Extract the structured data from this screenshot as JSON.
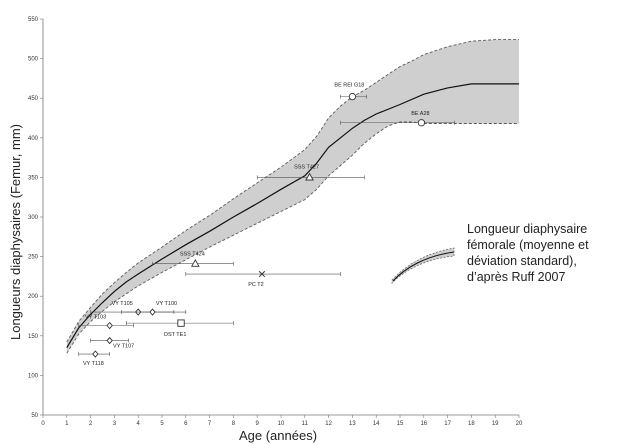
{
  "chart_data": {
    "type": "line",
    "xlabel": "Age (années)",
    "ylabel": "Longueurs diaphysaires (Femur, mm)",
    "xlim": [
      0,
      20
    ],
    "ylim": [
      50,
      550
    ],
    "x_ticks": [
      0,
      1,
      2,
      3,
      4,
      5,
      6,
      7,
      8,
      9,
      10,
      11,
      12,
      13,
      14,
      15,
      16,
      17,
      18,
      19,
      20
    ],
    "y_ticks": [
      50,
      100,
      150,
      200,
      250,
      300,
      350,
      400,
      450,
      500,
      550
    ],
    "grid": false,
    "mean_curve": {
      "x": [
        1,
        1.5,
        2,
        2.5,
        3,
        3.5,
        4,
        5,
        6,
        7,
        8,
        9,
        10,
        11,
        11.5,
        12,
        12.5,
        13,
        13.5,
        14,
        15,
        16,
        17,
        18,
        19,
        20
      ],
      "y": [
        135,
        160,
        177,
        192,
        206,
        218,
        228,
        247,
        265,
        282,
        300,
        317,
        335,
        352,
        368,
        388,
        400,
        412,
        422,
        430,
        442,
        455,
        463,
        468,
        468,
        468
      ]
    },
    "sd_band": {
      "x": [
        1,
        1.5,
        2,
        2.5,
        3,
        3.5,
        4,
        5,
        6,
        7,
        8,
        9,
        10,
        11,
        11.5,
        12,
        12.5,
        13,
        13.5,
        14,
        14.5,
        15,
        15.5,
        16,
        17,
        18,
        19,
        20
      ],
      "upper": [
        142,
        168,
        186,
        203,
        217,
        230,
        242,
        262,
        283,
        302,
        323,
        343,
        363,
        385,
        402,
        425,
        440,
        452,
        460,
        470,
        480,
        490,
        497,
        505,
        515,
        522,
        524,
        524
      ],
      "lower": [
        128,
        152,
        168,
        181,
        193,
        203,
        213,
        230,
        246,
        262,
        277,
        292,
        307,
        322,
        335,
        352,
        365,
        378,
        393,
        405,
        415,
        420,
        420,
        418,
        418,
        418,
        418,
        418
      ]
    },
    "points": [
      {
        "label": "BE REI G18",
        "x": 13.0,
        "y": 452,
        "xmin": 12.5,
        "xmax": 13.6,
        "marker": "circle"
      },
      {
        "label": "BE A28",
        "x": 15.9,
        "y": 419,
        "xmin": 12.5,
        "xmax": 17.3,
        "marker": "circle"
      },
      {
        "label": "SSS T427",
        "x": 11.2,
        "y": 350,
        "xmin": 9.0,
        "xmax": 13.5,
        "marker": "triangle"
      },
      {
        "label": "SSS T424",
        "x": 6.4,
        "y": 241,
        "xmin": 4.6,
        "xmax": 8.0,
        "marker": "triangle"
      },
      {
        "label": "PC T2",
        "x": 9.2,
        "y": 228,
        "xmin": 6.0,
        "xmax": 12.5,
        "marker": "x"
      },
      {
        "label": "VY T105",
        "x": 4.0,
        "y": 180,
        "xmin": 2.0,
        "xmax": 5.5,
        "marker": "diamond"
      },
      {
        "label": "VY T100",
        "x": 4.6,
        "y": 180,
        "xmin": 3.3,
        "xmax": 6.0,
        "marker": "diamond"
      },
      {
        "label": "VY T103",
        "x": 2.8,
        "y": 163,
        "xmin": 1.5,
        "xmax": 3.8,
        "marker": "diamond"
      },
      {
        "label": "OST TE1",
        "x": 5.8,
        "y": 166,
        "xmin": 3.5,
        "xmax": 8.0,
        "marker": "square"
      },
      {
        "label": "VY T107",
        "x": 2.8,
        "y": 144,
        "xmin": 2.0,
        "xmax": 3.6,
        "marker": "diamond"
      },
      {
        "label": "VY T118",
        "x": 2.2,
        "y": 127,
        "xmin": 1.5,
        "xmax": 2.8,
        "marker": "diamond"
      }
    ],
    "legend": {
      "text_lines": [
        "Longueur diaphysaire",
        "fémorale (moyenne et",
        "déviation standard),",
        "d’après Ruff 2007"
      ],
      "placement": "right"
    },
    "colors": {
      "band_fill": "#cfcfcf",
      "band_edge": "#5a5a5a",
      "mean_line": "#111111",
      "marker": "#333333",
      "error_bar": "#555555"
    }
  }
}
